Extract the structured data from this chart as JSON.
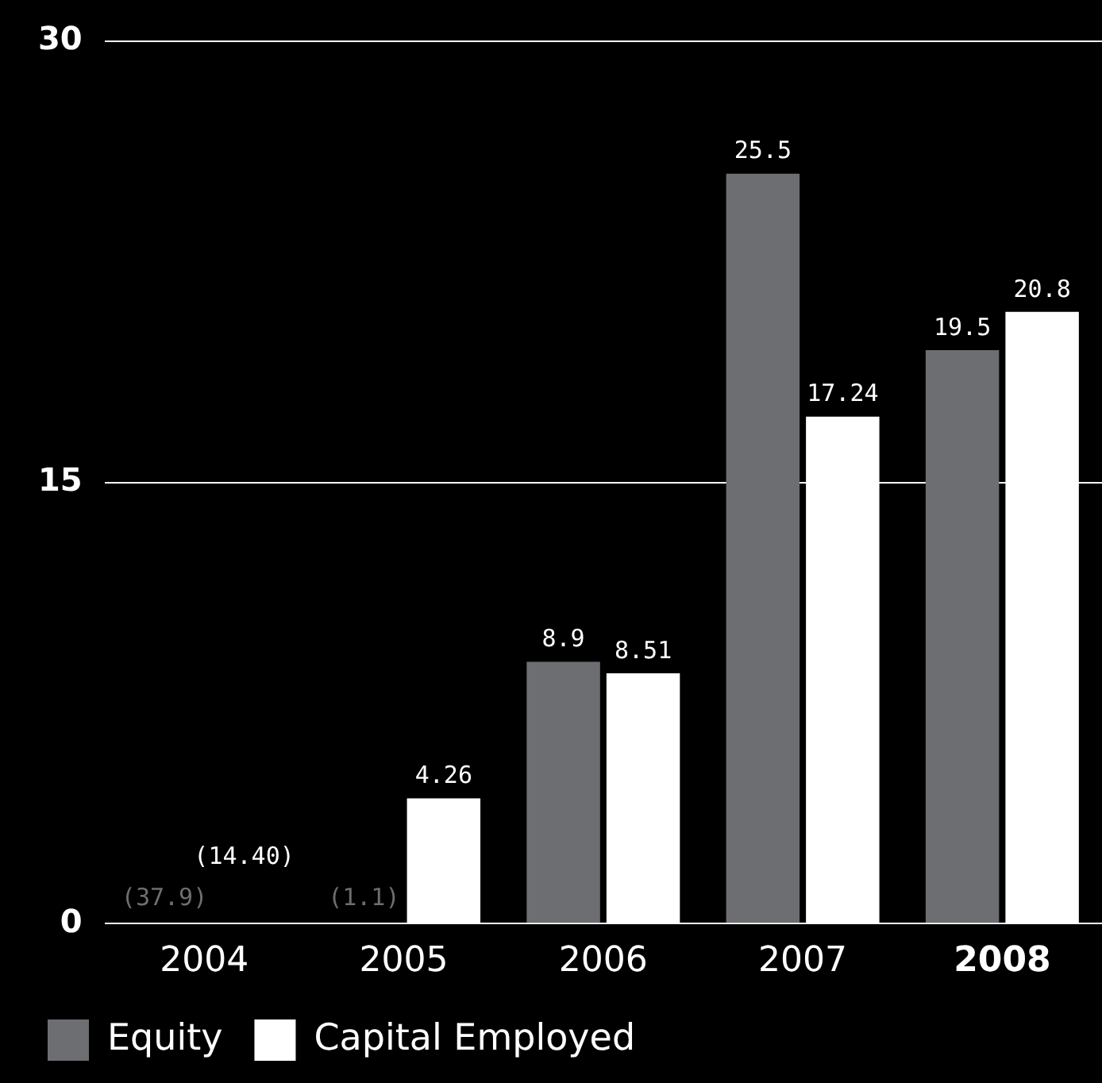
{
  "chart_data": {
    "type": "bar",
    "categories": [
      "2004",
      "2005",
      "2006",
      "2007",
      "2008"
    ],
    "series": [
      {
        "name": "Equity",
        "color": "#6d6e71",
        "values": [
          null,
          null,
          8.9,
          25.5,
          19.5
        ],
        "value_labels": [
          "(37.9)",
          "(1.1)",
          "8.9",
          "25.5",
          "19.5"
        ]
      },
      {
        "name": "Capital Employed",
        "color": "#ffffff",
        "values": [
          null,
          4.26,
          8.51,
          17.24,
          20.8
        ],
        "value_labels": [
          "(14.40)",
          "4.26",
          "8.51",
          "17.24",
          "20.8"
        ]
      }
    ],
    "ylim": [
      0,
      30
    ],
    "yticks": [
      0,
      15,
      30
    ],
    "grid": "y",
    "legend": "bottom left"
  }
}
